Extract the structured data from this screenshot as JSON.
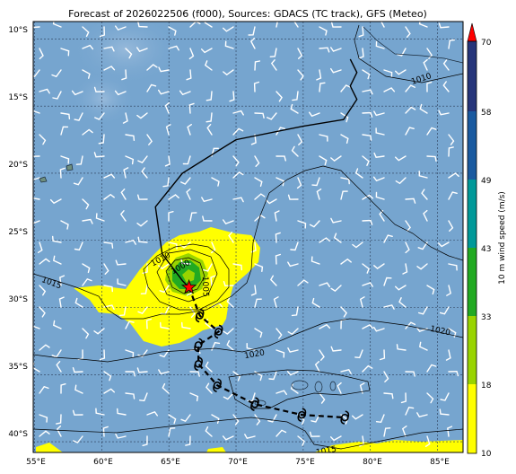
{
  "title": "Forecast of 2026022506 (f000), Sources: GDACS (TC track), GFS (Meteo)",
  "x_ticks": [
    "55°E",
    "60°E",
    "65°E",
    "70°E",
    "75°E",
    "80°E",
    "85°E"
  ],
  "y_ticks": [
    "10°S",
    "15°S",
    "20°S",
    "25°S",
    "30°S",
    "35°S",
    "40°S"
  ],
  "colorbar": {
    "label": "10 m wind speed (m/s)",
    "tick_labels": [
      "10",
      "18",
      "33",
      "43",
      "49",
      "58",
      "70"
    ],
    "colors": [
      "#ffff00",
      "#99d400",
      "#22aa22",
      "#009999",
      "#1a5aa0",
      "#26357a",
      "#ff0000"
    ]
  },
  "isobar_labels": [
    "1010",
    "1015",
    "1010",
    "1000",
    "1005",
    "1020",
    "1020",
    "1015"
  ],
  "track": {
    "past": [
      [
        78.5,
        -11.5
      ],
      [
        79,
        -12.5
      ],
      [
        78.5,
        -13.5
      ],
      [
        79,
        -14.5
      ],
      [
        78,
        -16
      ],
      [
        75,
        -16.5
      ],
      [
        70,
        -17.5
      ],
      [
        66,
        -20
      ],
      [
        64,
        -22.5
      ],
      [
        64.5,
        -26
      ],
      [
        66,
        -28
      ],
      [
        66.5,
        -28.5
      ]
    ],
    "forecast": [
      [
        66.5,
        -28.5
      ],
      [
        67.3,
        -30.6
      ],
      [
        68.7,
        -31.8
      ],
      [
        67.2,
        -32.8
      ],
      [
        67.2,
        -34.2
      ],
      [
        68.6,
        -35.8
      ],
      [
        71.4,
        -37.2
      ],
      [
        74.9,
        -38
      ],
      [
        78.1,
        -38.2
      ]
    ],
    "current_position": [
      66.5,
      -28.5
    ]
  }
}
